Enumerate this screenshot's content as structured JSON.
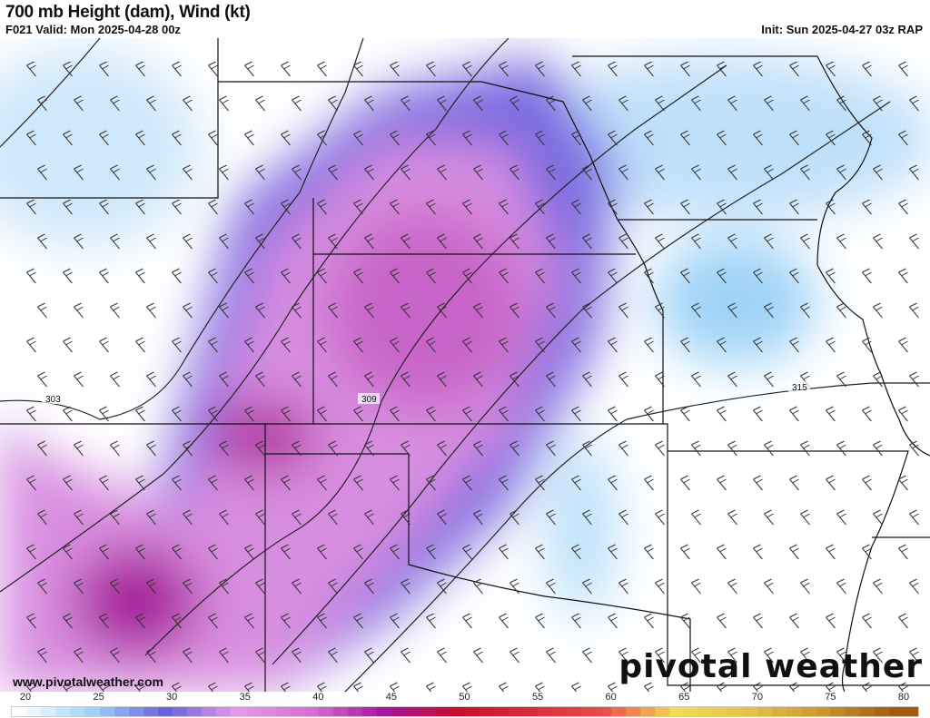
{
  "header": {
    "title": "700 mb Height (dam), Wind (kt)",
    "valid": "F021 Valid: Mon 2025-04-28 00z",
    "init": "Init: Sun 2025-04-27 03z RAP"
  },
  "map": {
    "contour_labels": [
      "303",
      "309",
      "315"
    ],
    "url": "www.pivotalweather.com",
    "logo": "pivotal weather"
  },
  "colorbar": {
    "ticks": [
      "20",
      "25",
      "30",
      "35",
      "40",
      "45",
      "50",
      "55",
      "60",
      "65",
      "70",
      "75",
      "80"
    ],
    "range_kt": [
      20,
      80
    ],
    "stops": [
      {
        "kt": 20,
        "color": "#ffffff"
      },
      {
        "kt": 25,
        "color": "#9fd3f7"
      },
      {
        "kt": 30,
        "color": "#6a62d8"
      },
      {
        "kt": 35,
        "color": "#e49ae8"
      },
      {
        "kt": 40,
        "color": "#d46ed0"
      },
      {
        "kt": 45,
        "color": "#a3179c"
      },
      {
        "kt": 50,
        "color": "#c8102e"
      },
      {
        "kt": 55,
        "color": "#d92b3a"
      },
      {
        "kt": 60,
        "color": "#e8504a"
      },
      {
        "kt": 65,
        "color": "#f2dc55"
      },
      {
        "kt": 70,
        "color": "#e4c24a"
      },
      {
        "kt": 75,
        "color": "#c99630"
      },
      {
        "kt": 80,
        "color": "#9e5a10"
      }
    ]
  }
}
